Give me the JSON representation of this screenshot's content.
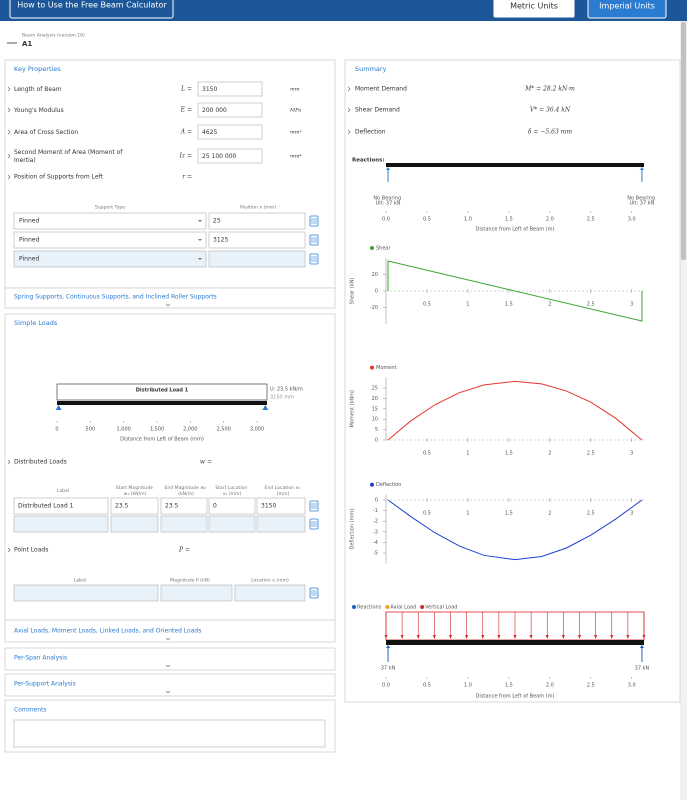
{
  "nav": {
    "help": "How to Use the Free Beam Calculator",
    "metric": "Metric Units",
    "imperial": "Imperial Units"
  },
  "header": {
    "version": "Beam Analysis (version 16)",
    "name": "A1"
  },
  "key_properties": {
    "title": "Key Properties",
    "rows": [
      {
        "label": "Length of Beam",
        "symbol": "L =",
        "value": "3150",
        "unit": "mm"
      },
      {
        "label": "Young's Modulus",
        "symbol": "E =",
        "value": "200 000",
        "unit": "MPa"
      },
      {
        "label": "Area of Cross Section",
        "symbol": "A =",
        "value": "4625",
        "unit": "mm²"
      },
      {
        "label": "Second Moment of Area (Moment of Inertia)",
        "symbol": "Iz =",
        "value": "25 100 000",
        "unit": "mm⁴"
      }
    ]
  },
  "supports": {
    "label": "Position of Supports from Left",
    "symbol": "r =",
    "headers": [
      "Support Type",
      "Position x (mm)"
    ],
    "rows": [
      [
        "Pinned",
        "25"
      ],
      [
        "Pinned",
        "3125"
      ],
      [
        "Pinned"
      ]
    ]
  },
  "sections": {
    "spring": "Spring Supports, Continuous Supports, and Inclined Roller Supports",
    "simple_loads": "Simple Loads",
    "axial": "Axial Loads, Moment Loads, Linked Loads, and Oriented Loads",
    "per_span": "Per-Span Analysis",
    "per_support": "Per-Support Analysis",
    "comments": "Comments"
  },
  "distributed_loads": {
    "label": "Distributed Loads",
    "symbol": "w =",
    "headers": [
      "Label",
      "Start Magnitude w₁ (kN/m)",
      "End Magnitude w₂ (kN/m)",
      "Start Location x₁ (mm)",
      "End Location x₂ (mm)"
    ],
    "rows": [
      [
        "Distributed Load 1",
        "23.5",
        "23.5",
        "0",
        "3150"
      ]
    ]
  },
  "point_loads": {
    "label": "Point Loads",
    "symbol": "P =",
    "headers": [
      "Label",
      "Magnitude P (kN)",
      "Location x (mm)"
    ]
  },
  "summary": {
    "title": "Summary",
    "rows": [
      {
        "label": "Moment Demand",
        "value": "M* = 28.2 kN·m"
      },
      {
        "label": "Shear Demand",
        "value": "V* = 36.4 kN"
      },
      {
        "label": "Deflection",
        "value": "δ = −5.63 mm"
      }
    ]
  },
  "chart_data": [
    {
      "type": "beam-diagram",
      "load_label": "Distributed Load 1",
      "load_value": "U: 23.5 kN/m",
      "load_extent": "3150 mm",
      "load": {
        "start": 0,
        "end": 3150
      },
      "supports": [
        25,
        3125
      ],
      "xlim": [
        0,
        3150
      ],
      "xticks": [
        0,
        500,
        {
          "value": 1000,
          "label": "1,000"
        },
        {
          "value": 1500,
          "label": "1,500"
        },
        {
          "value": 2000,
          "label": "2,000"
        },
        {
          "value": 2500,
          "label": "2,500"
        },
        {
          "value": 3000,
          "label": "3,000"
        }
      ],
      "xlabel": "Distance from Left of Beam (mm)"
    },
    {
      "type": "reactions",
      "title": "Reactions:",
      "supports": [
        0.025,
        3.125
      ],
      "support_labels": [
        "No Bearing Ult: 37 kN",
        "No Bearing Ult: 37 kN"
      ],
      "xlim": [
        0,
        3.15
      ],
      "xticks": [
        {
          "value": 0,
          "label": "0.0"
        },
        0.5,
        {
          "value": 1,
          "label": "1.0"
        },
        1.5,
        {
          "value": 2,
          "label": "2.0"
        },
        2.5,
        {
          "value": 3,
          "label": "3.0"
        }
      ],
      "xlabel": "Distance from Left of Beam (m)"
    },
    {
      "type": "line",
      "ylabel": "Shear (kN)",
      "x": [
        0.025,
        0.025,
        3.125,
        3.125
      ],
      "series": [
        {
          "name": "Shear",
          "color": "#3aa52e",
          "values": [
            0,
            36.4,
            -36.4,
            0
          ]
        }
      ],
      "xlim": [
        0,
        3.15
      ],
      "ylim": [
        -40,
        40
      ],
      "xticks": [
        0.5,
        1,
        1.5,
        2,
        2.5,
        3
      ],
      "yticks": [
        -20,
        0,
        20
      ]
    },
    {
      "type": "line",
      "ylabel": "Moment (kNm)",
      "x": [
        0.025,
        0.3,
        0.6,
        0.9,
        1.2,
        1.575,
        1.9,
        2.2,
        2.5,
        2.8,
        3.125
      ],
      "series": [
        {
          "name": "Moment",
          "color": "#e8352a",
          "values": [
            0,
            9.1,
            17.0,
            22.8,
            26.5,
            28.2,
            27.0,
            23.6,
            18.2,
            10.6,
            0
          ]
        }
      ],
      "xlim": [
        0,
        3.15
      ],
      "ylim": [
        0,
        30
      ],
      "xticks": [
        0.5,
        1,
        1.5,
        2,
        2.5,
        3
      ],
      "yticks": [
        0,
        5,
        10,
        15,
        20,
        25
      ]
    },
    {
      "type": "line",
      "ylabel": "Deflection (mm)",
      "x": [
        0.025,
        0.3,
        0.6,
        0.9,
        1.2,
        1.575,
        1.9,
        2.2,
        2.5,
        2.8,
        3.125
      ],
      "series": [
        {
          "name": "Deflection",
          "color": "#1f3fd0",
          "values": [
            0,
            -1.55,
            -3.1,
            -4.36,
            -5.23,
            -5.63,
            -5.33,
            -4.54,
            -3.32,
            -1.82,
            0
          ]
        }
      ],
      "xlim": [
        0,
        3.15
      ],
      "ylim": [
        -6,
        0.5
      ],
      "xticks": [
        0.5,
        1,
        1.5,
        2,
        2.5,
        3
      ],
      "yticks": [
        -5,
        -4,
        -3,
        -2,
        -1,
        0
      ]
    },
    {
      "type": "load-diagram",
      "legend": [
        {
          "name": "Reactions",
          "color": "#1f5fbf"
        },
        {
          "name": "Axial Load",
          "color": "#f0a020"
        },
        {
          "name": "Vertical Load",
          "color": "#d62728"
        }
      ],
      "load": {
        "start": 0,
        "end": 3.15
      },
      "supports": [
        0.025,
        3.125
      ],
      "reaction_labels": [
        "37 kN",
        "37 kN"
      ],
      "xlim": [
        0,
        3.15
      ],
      "xticks": [
        {
          "value": 0,
          "label": "0.0"
        },
        0.5,
        {
          "value": 1,
          "label": "1.0"
        },
        1.5,
        {
          "value": 2,
          "label": "2.0"
        },
        2.5,
        {
          "value": 3,
          "label": "3.0"
        }
      ],
      "xlabel": "Distance from Left of Beam (m)"
    }
  ]
}
